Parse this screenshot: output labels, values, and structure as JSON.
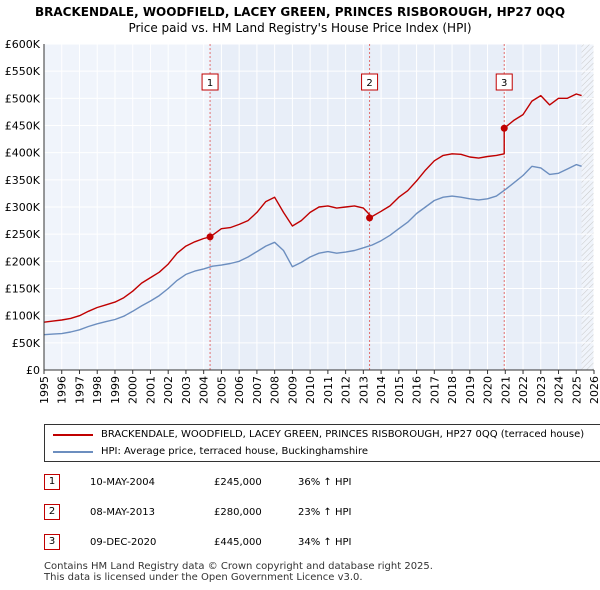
{
  "chart_data": {
    "type": "line",
    "title": "BRACKENDALE, WOODFIELD, LACEY GREEN, PRINCES RISBOROUGH, HP27 0QQ",
    "subtitle": "Price paid vs. HM Land Registry's House Price Index (HPI)",
    "xlabel": "",
    "ylabel": "",
    "xlim": [
      1995,
      2026
    ],
    "ylim": [
      0,
      600000
    ],
    "y_ticks": [
      {
        "value": 0,
        "label": "£0"
      },
      {
        "value": 50000,
        "label": "£50K"
      },
      {
        "value": 100000,
        "label": "£100K"
      },
      {
        "value": 150000,
        "label": "£150K"
      },
      {
        "value": 200000,
        "label": "£200K"
      },
      {
        "value": 250000,
        "label": "£250K"
      },
      {
        "value": 300000,
        "label": "£300K"
      },
      {
        "value": 350000,
        "label": "£350K"
      },
      {
        "value": 400000,
        "label": "£400K"
      },
      {
        "value": 450000,
        "label": "£450K"
      },
      {
        "value": 500000,
        "label": "£500K"
      },
      {
        "value": 550000,
        "label": "£550K"
      },
      {
        "value": 600000,
        "label": "£600K"
      }
    ],
    "x_ticks": [
      "1995",
      "1996",
      "1997",
      "1998",
      "1999",
      "2000",
      "2001",
      "2002",
      "2003",
      "2004",
      "2005",
      "2006",
      "2007",
      "2008",
      "2009",
      "2010",
      "2011",
      "2012",
      "2013",
      "2014",
      "2015",
      "2016",
      "2017",
      "2018",
      "2019",
      "2020",
      "2021",
      "2022",
      "2023",
      "2024",
      "2025",
      "2026"
    ],
    "series": [
      {
        "name": "BRACKENDALE, WOODFIELD, LACEY GREEN, PRINCES RISBOROUGH, HP27 0QQ (terraced house)",
        "color": "#c00000",
        "x": [
          1995.0,
          1995.5,
          1996.0,
          1996.5,
          1997.0,
          1997.5,
          1998.0,
          1998.5,
          1999.0,
          1999.5,
          2000.0,
          2000.5,
          2001.0,
          2001.5,
          2002.0,
          2002.5,
          2003.0,
          2003.5,
          2004.0,
          2004.36,
          2004.36,
          2005.0,
          2005.5,
          2006.0,
          2006.5,
          2007.0,
          2007.5,
          2008.0,
          2008.5,
          2009.0,
          2009.5,
          2010.0,
          2010.5,
          2011.0,
          2011.5,
          2012.0,
          2012.5,
          2013.0,
          2013.35,
          2013.35,
          2014.0,
          2014.5,
          2015.0,
          2015.5,
          2016.0,
          2016.5,
          2017.0,
          2017.5,
          2018.0,
          2018.5,
          2019.0,
          2019.5,
          2020.0,
          2020.5,
          2020.94,
          2020.94,
          2021.5,
          2022.0,
          2022.5,
          2023.0,
          2023.5,
          2024.0,
          2024.5,
          2025.0,
          2025.3
        ],
        "values": [
          88000,
          90000,
          92000,
          95000,
          100000,
          108000,
          115000,
          120000,
          125000,
          133000,
          145000,
          160000,
          170000,
          180000,
          195000,
          215000,
          228000,
          236000,
          242000,
          245000,
          245000,
          260000,
          262000,
          268000,
          275000,
          290000,
          310000,
          318000,
          290000,
          265000,
          275000,
          290000,
          300000,
          302000,
          298000,
          300000,
          302000,
          298000,
          286000,
          280000,
          292000,
          302000,
          318000,
          330000,
          348000,
          368000,
          385000,
          395000,
          398000,
          397000,
          392000,
          390000,
          393000,
          395000,
          398000,
          445000,
          460000,
          470000,
          495000,
          505000,
          488000,
          500000,
          500000,
          508000,
          505000
        ]
      },
      {
        "name": "HPI: Average price, terraced house, Buckinghamshire",
        "color": "#6c8ebf",
        "x": [
          1995.0,
          1995.5,
          1996.0,
          1996.5,
          1997.0,
          1997.5,
          1998.0,
          1998.5,
          1999.0,
          1999.5,
          2000.0,
          2000.5,
          2001.0,
          2001.5,
          2002.0,
          2002.5,
          2003.0,
          2003.5,
          2004.0,
          2004.5,
          2005.0,
          2005.5,
          2006.0,
          2006.5,
          2007.0,
          2007.5,
          2008.0,
          2008.5,
          2009.0,
          2009.5,
          2010.0,
          2010.5,
          2011.0,
          2011.5,
          2012.0,
          2012.5,
          2013.0,
          2013.5,
          2014.0,
          2014.5,
          2015.0,
          2015.5,
          2016.0,
          2016.5,
          2017.0,
          2017.5,
          2018.0,
          2018.5,
          2019.0,
          2019.5,
          2020.0,
          2020.5,
          2021.0,
          2021.5,
          2022.0,
          2022.5,
          2023.0,
          2023.5,
          2024.0,
          2024.5,
          2025.0,
          2025.3
        ],
        "values": [
          65000,
          66000,
          67000,
          70000,
          74000,
          80000,
          85000,
          89000,
          93000,
          99000,
          108000,
          118000,
          127000,
          137000,
          150000,
          165000,
          176000,
          182000,
          186000,
          191000,
          193000,
          196000,
          200000,
          208000,
          218000,
          228000,
          235000,
          220000,
          190000,
          198000,
          208000,
          215000,
          218000,
          215000,
          217000,
          220000,
          225000,
          230000,
          238000,
          248000,
          260000,
          272000,
          288000,
          300000,
          312000,
          318000,
          320000,
          318000,
          315000,
          313000,
          315000,
          320000,
          332000,
          345000,
          358000,
          375000,
          372000,
          360000,
          362000,
          370000,
          378000,
          375000
        ]
      }
    ],
    "sales": [
      {
        "label": "1",
        "x": 2004.36,
        "value": 245000
      },
      {
        "label": "2",
        "x": 2013.35,
        "value": 280000
      },
      {
        "label": "3",
        "x": 2020.94,
        "value": 445000
      }
    ],
    "projection_start_x": 2025.3,
    "legend_position": "below"
  },
  "legend": {
    "items": [
      {
        "label": "BRACKENDALE, WOODFIELD, LACEY GREEN, PRINCES RISBOROUGH, HP27 0QQ (terraced house)",
        "color": "#c00000"
      },
      {
        "label": "HPI: Average price, terraced house, Buckinghamshire",
        "color": "#6c8ebf"
      }
    ]
  },
  "sales_table": [
    {
      "num": "1",
      "date": "10-MAY-2004",
      "price": "£245,000",
      "hpi": "36% ↑ HPI"
    },
    {
      "num": "2",
      "date": "08-MAY-2013",
      "price": "£280,000",
      "hpi": "23% ↑ HPI"
    },
    {
      "num": "3",
      "date": "09-DEC-2020",
      "price": "£445,000",
      "hpi": "34% ↑ HPI"
    }
  ],
  "footer": {
    "line1": "Contains HM Land Registry data © Crown copyright and database right 2025.",
    "line2": "This data is licensed under the Open Government Licence v3.0."
  },
  "colors": {
    "property_line": "#c00000",
    "hpi_line": "#6c8ebf",
    "sale_band": "#e8eef8",
    "plot_background": "#f0f4fb"
  }
}
